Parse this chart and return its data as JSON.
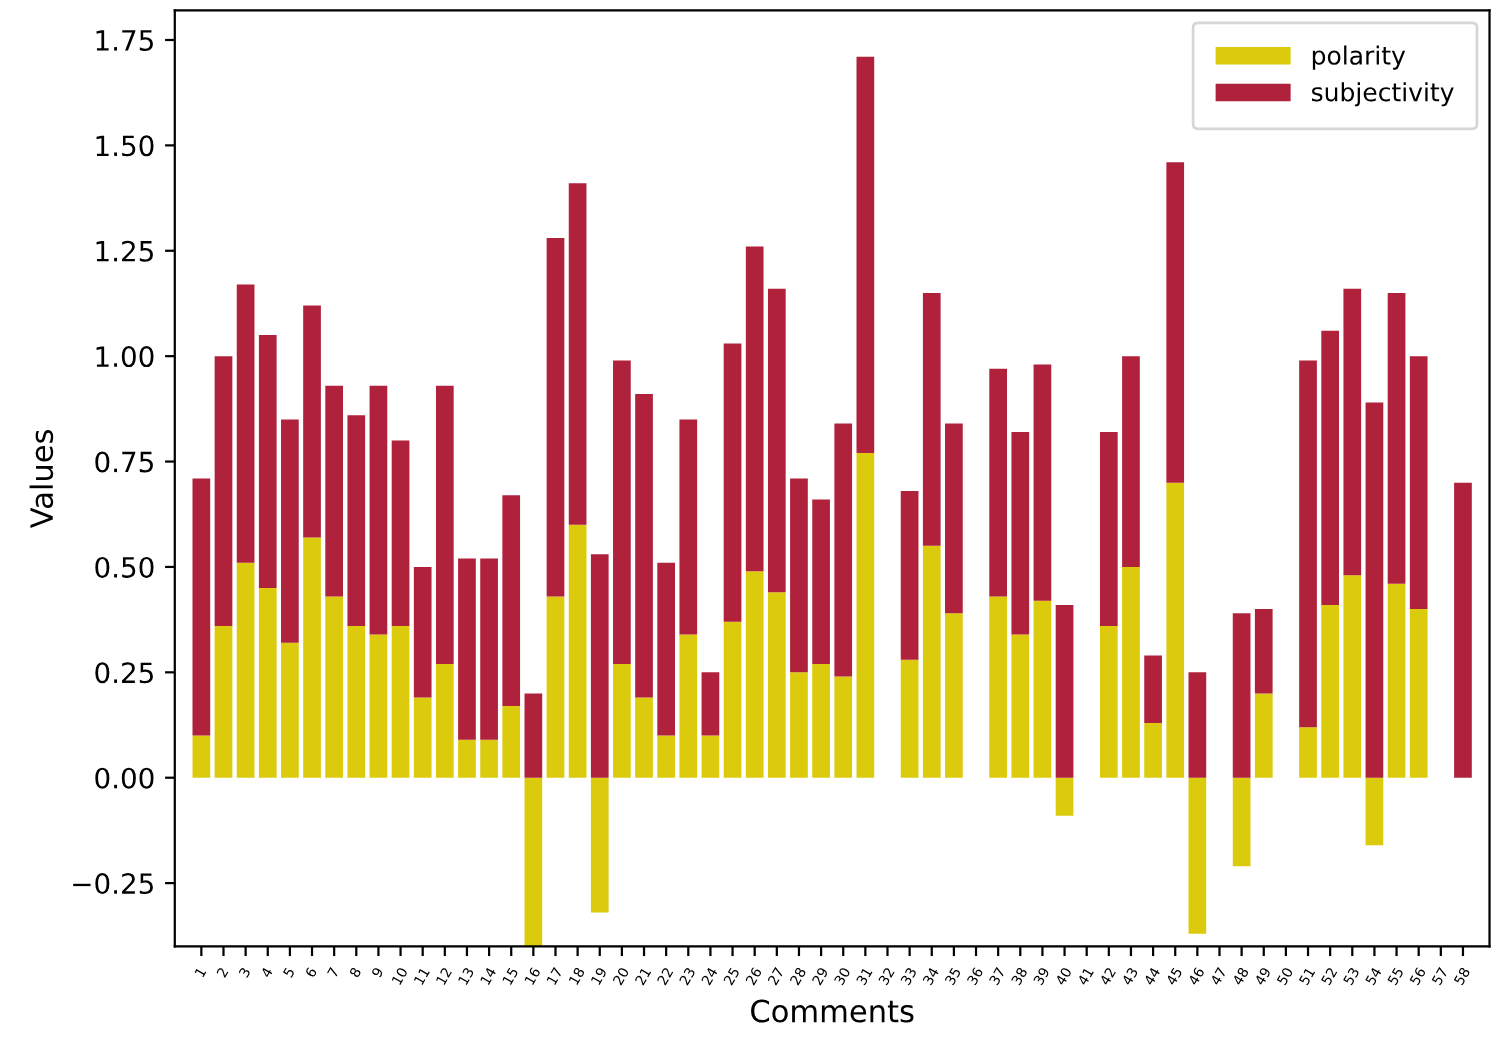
{
  "chart_data": {
    "type": "bar",
    "stacked": true,
    "xlabel": "Comments",
    "ylabel": "Values",
    "categories": [
      "1",
      "2",
      "3",
      "4",
      "5",
      "6",
      "7",
      "8",
      "9",
      "10",
      "11",
      "12",
      "13",
      "14",
      "15",
      "16",
      "17",
      "18",
      "19",
      "20",
      "21",
      "22",
      "23",
      "24",
      "25",
      "26",
      "27",
      "28",
      "29",
      "30",
      "31",
      "32",
      "33",
      "34",
      "35",
      "36",
      "37",
      "38",
      "39",
      "40",
      "41",
      "42",
      "43",
      "44",
      "45",
      "46",
      "47",
      "48",
      "49",
      "50",
      "51",
      "52",
      "53",
      "54",
      "55",
      "56",
      "57",
      "58"
    ],
    "series": [
      {
        "name": "polarity",
        "color": "#dccb0c",
        "values": [
          0.1,
          0.36,
          0.51,
          0.45,
          0.32,
          0.57,
          0.43,
          0.36,
          0.34,
          0.36,
          0.19,
          0.27,
          0.09,
          0.09,
          0.17,
          -0.4,
          0.43,
          0.6,
          -0.32,
          0.27,
          0.19,
          0.1,
          0.34,
          0.1,
          0.37,
          0.49,
          0.44,
          0.25,
          0.27,
          0.24,
          0.77,
          0,
          0.28,
          0.55,
          0.39,
          0,
          0.43,
          0.34,
          0.42,
          -0.09,
          0,
          0.36,
          0.5,
          0.13,
          0.7,
          -0.37,
          0,
          -0.21,
          0.2,
          0,
          0.12,
          0.41,
          0.48,
          -0.16,
          0.46,
          0.4,
          0,
          0
        ]
      },
      {
        "name": "subjectivity",
        "color": "#b0213b",
        "values": [
          0.61,
          0.64,
          0.66,
          0.6,
          0.53,
          0.55,
          0.5,
          0.5,
          0.59,
          0.44,
          0.31,
          0.66,
          0.43,
          0.43,
          0.5,
          0.2,
          0.85,
          0.81,
          0.53,
          0.72,
          0.72,
          0.41,
          0.51,
          0.15,
          0.66,
          0.77,
          0.72,
          0.46,
          0.39,
          0.6,
          0.94,
          0,
          0.4,
          0.6,
          0.45,
          0,
          0.54,
          0.48,
          0.56,
          0.41,
          0,
          0.46,
          0.5,
          0.16,
          0.76,
          0.25,
          0,
          0.39,
          0.2,
          0,
          0.87,
          0.65,
          0.68,
          0.89,
          0.69,
          0.6,
          0,
          0.7
        ]
      }
    ],
    "ylim": [
      -0.4,
      1.82
    ],
    "yticks": [
      {
        "value": -0.25,
        "label": "−0.25"
      },
      {
        "value": 0,
        "label": "0.00"
      },
      {
        "value": 0.25,
        "label": "0.25"
      },
      {
        "value": 0.5,
        "label": "0.50"
      },
      {
        "value": 0.75,
        "label": "0.75"
      },
      {
        "value": 1,
        "label": "1.00"
      },
      {
        "value": 1.25,
        "label": "1.25"
      },
      {
        "value": 1.5,
        "label": "1.50"
      },
      {
        "value": 1.75,
        "label": "1.75"
      }
    ],
    "legend": "top right",
    "grid": false
  }
}
